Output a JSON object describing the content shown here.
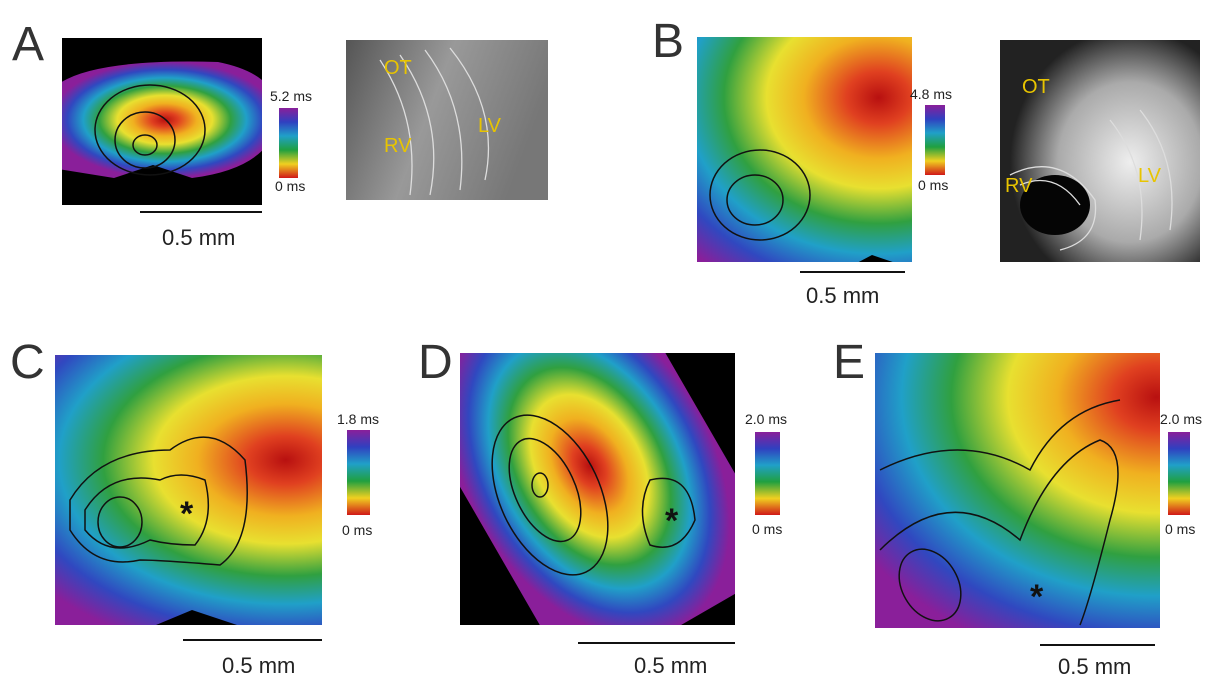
{
  "panels": [
    {
      "label": "A",
      "colorbar_max": "5.2 ms",
      "colorbar_min": "0 ms",
      "scale_bar": "0.5 mm",
      "annotations": [
        "OT",
        "RV",
        "LV"
      ]
    },
    {
      "label": "B",
      "colorbar_max": "4.8 ms",
      "colorbar_min": "0 ms",
      "scale_bar": "0.5 mm",
      "annotations": [
        "OT",
        "RV",
        "LV"
      ]
    },
    {
      "label": "C",
      "colorbar_max": "1.8 ms",
      "colorbar_min": "0 ms",
      "scale_bar": "0.5 mm",
      "annotations": [
        "*"
      ]
    },
    {
      "label": "D",
      "colorbar_max": "2.0 ms",
      "colorbar_min": "0 ms",
      "scale_bar": "0.5 mm",
      "annotations": [
        "*"
      ]
    },
    {
      "label": "E",
      "colorbar_max": "2.0 ms",
      "colorbar_min": "0 ms",
      "scale_bar": "0.5 mm",
      "annotations": [
        "*"
      ]
    }
  ]
}
